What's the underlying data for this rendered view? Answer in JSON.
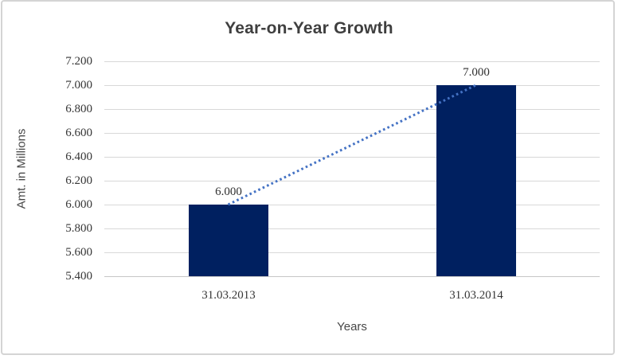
{
  "chart_data": {
    "type": "bar",
    "title": "Year-on-Year Growth",
    "categories": [
      "31.03.2013",
      "31.03.2014"
    ],
    "series": [
      {
        "name": "Amt. in Millions",
        "values": [
          6.0,
          7.0
        ]
      }
    ],
    "data_labels": [
      "6.000",
      "7.000"
    ],
    "xlabel": "Years",
    "ylabel": "Amt. in Millions",
    "ylim": [
      5.4,
      7.2
    ],
    "ytick_step": 0.2,
    "ytick_labels": [
      "7.200",
      "7.000",
      "6.800",
      "6.600",
      "6.400",
      "6.200",
      "6.000",
      "5.800",
      "5.600",
      "5.400"
    ],
    "grid": true,
    "legend": "none",
    "bar_color": "#002060",
    "trendline": {
      "style": "dotted",
      "color": "#4472c4"
    }
  }
}
